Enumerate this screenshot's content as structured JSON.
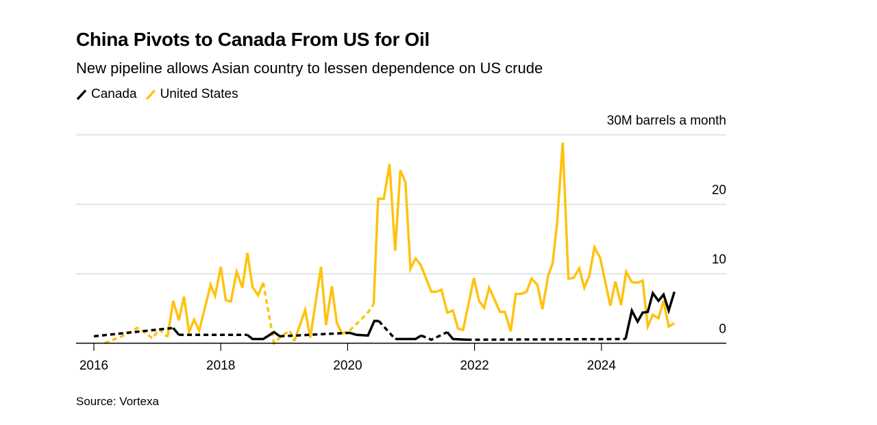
{
  "chart_data": {
    "type": "line",
    "title": "China Pivots to Canada From US for Oil",
    "subtitle": "New pipeline allows Asian country to lessen dependence on US crude",
    "ylabel": "30M barrels a month",
    "xlabel": "",
    "source": "Source: Vortexa",
    "xlim": [
      2015.7,
      2026.0
    ],
    "ylim": [
      0,
      30
    ],
    "yticks": [
      {
        "value": 30,
        "label": "30M barrels a month"
      },
      {
        "value": 20,
        "label": "20"
      },
      {
        "value": 10,
        "label": "10"
      },
      {
        "value": 0,
        "label": "0"
      }
    ],
    "xticks": [
      {
        "value": 2016,
        "label": "2016"
      },
      {
        "value": 2018,
        "label": "2018"
      },
      {
        "value": 2020,
        "label": "2020"
      },
      {
        "value": 2022,
        "label": "2022"
      },
      {
        "value": 2024,
        "label": "2024"
      }
    ],
    "grid": true,
    "legend_position": "top-left",
    "series": [
      {
        "name": "United States",
        "color": "#FFC20E",
        "segments": [
          {
            "style": "dashed",
            "points": [
              [
                2016.17,
                0
              ],
              [
                2016.5,
                1.2
              ],
              [
                2016.68,
                2.2
              ],
              [
                2016.82,
                1.5
              ],
              [
                2016.92,
                0.7
              ],
              [
                2017.03,
                2.0
              ],
              [
                2017.16,
                0.9
              ]
            ]
          },
          {
            "style": "solid",
            "points": [
              [
                2017.16,
                0.9
              ],
              [
                2017.25,
                6.1
              ],
              [
                2017.34,
                3.3
              ],
              [
                2017.42,
                6.7
              ],
              [
                2017.5,
                1.6
              ],
              [
                2017.58,
                3.4
              ],
              [
                2017.66,
                1.8
              ],
              [
                2017.84,
                8.4
              ],
              [
                2017.91,
                6.8
              ],
              [
                2018.0,
                11
              ],
              [
                2018.08,
                6.2
              ],
              [
                2018.16,
                6.0
              ],
              [
                2018.25,
                10.3
              ],
              [
                2018.34,
                8.0
              ],
              [
                2018.42,
                13
              ],
              [
                2018.5,
                8.1
              ],
              [
                2018.59,
                6.9
              ],
              [
                2018.67,
                8.7
              ]
            ]
          },
          {
            "style": "dashed",
            "points": [
              [
                2018.67,
                8.7
              ],
              [
                2018.84,
                0
              ],
              [
                2018.95,
                1.0
              ],
              [
                2019.09,
                1.8
              ],
              [
                2019.16,
                0.3
              ]
            ]
          },
          {
            "style": "solid",
            "points": [
              [
                2019.16,
                0.3
              ],
              [
                2019.33,
                4.8
              ],
              [
                2019.41,
                0.8
              ],
              [
                2019.58,
                11
              ],
              [
                2019.66,
                2.6
              ],
              [
                2019.75,
                8.2
              ],
              [
                2019.83,
                2.9
              ],
              [
                2019.91,
                1.4
              ]
            ]
          },
          {
            "style": "dashed",
            "points": [
              [
                2019.91,
                1.4
              ],
              [
                2020.03,
                1.8
              ],
              [
                2020.32,
                4.4
              ],
              [
                2020.41,
                5.6
              ]
            ]
          },
          {
            "style": "solid",
            "points": [
              [
                2020.41,
                5.6
              ],
              [
                2020.48,
                20.8
              ],
              [
                2020.57,
                20.8
              ],
              [
                2020.66,
                25.8
              ],
              [
                2020.75,
                13.3
              ],
              [
                2020.83,
                24.9
              ],
              [
                2020.91,
                23.2
              ],
              [
                2020.99,
                10.7
              ],
              [
                2021.07,
                12.2
              ],
              [
                2021.15,
                11.3
              ],
              [
                2021.32,
                7.4
              ],
              [
                2021.39,
                7.4
              ],
              [
                2021.48,
                7.7
              ],
              [
                2021.57,
                4.4
              ],
              [
                2021.66,
                4.7
              ],
              [
                2021.74,
                2.1
              ],
              [
                2021.82,
                1.9
              ],
              [
                2021.99,
                9.4
              ],
              [
                2022.07,
                6.1
              ],
              [
                2022.15,
                5.1
              ],
              [
                2022.23,
                8.0
              ],
              [
                2022.31,
                6.4
              ],
              [
                2022.4,
                4.5
              ],
              [
                2022.48,
                4.5
              ],
              [
                2022.57,
                1.7
              ],
              [
                2022.65,
                7.1
              ],
              [
                2022.74,
                7.1
              ],
              [
                2022.82,
                7.4
              ],
              [
                2022.9,
                9.3
              ],
              [
                2022.99,
                8.4
              ],
              [
                2023.07,
                4.9
              ],
              [
                2023.16,
                9.7
              ],
              [
                2023.23,
                11.5
              ],
              [
                2023.3,
                17.2
              ],
              [
                2023.39,
                28.9
              ],
              [
                2023.48,
                9.3
              ],
              [
                2023.56,
                9.4
              ],
              [
                2023.65,
                10.8
              ],
              [
                2023.73,
                8.0
              ],
              [
                2023.81,
                9.7
              ],
              [
                2023.89,
                13.8
              ],
              [
                2023.98,
                12.3
              ],
              [
                2024.14,
                5.4
              ],
              [
                2024.22,
                8.9
              ],
              [
                2024.31,
                5.5
              ],
              [
                2024.39,
                10.3
              ],
              [
                2024.48,
                8.8
              ],
              [
                2024.57,
                8.7
              ],
              [
                2024.65,
                9.0
              ],
              [
                2024.73,
                2.4
              ],
              [
                2024.81,
                4.1
              ],
              [
                2024.9,
                3.6
              ],
              [
                2024.98,
                6.1
              ],
              [
                2025.06,
                2.4
              ],
              [
                2025.15,
                2.9
              ]
            ]
          }
        ]
      },
      {
        "name": "Canada",
        "color": "#000000",
        "segments": [
          {
            "style": "dashed",
            "points": [
              [
                2016.0,
                1.0
              ],
              [
                2017.25,
                2.2
              ]
            ]
          },
          {
            "style": "solid",
            "points": [
              [
                2017.25,
                2.2
              ],
              [
                2017.34,
                1.2
              ]
            ]
          },
          {
            "style": "dashed",
            "points": [
              [
                2017.34,
                1.2
              ],
              [
                2018.42,
                1.2
              ]
            ]
          },
          {
            "style": "solid",
            "points": [
              [
                2018.42,
                1.2
              ],
              [
                2018.5,
                0.6
              ],
              [
                2018.67,
                0.6
              ],
              [
                2018.84,
                1.6
              ],
              [
                2018.93,
                1.0
              ]
            ]
          },
          {
            "style": "dashed",
            "points": [
              [
                2018.93,
                1.0
              ],
              [
                2020.03,
                1.5
              ]
            ]
          },
          {
            "style": "solid",
            "points": [
              [
                2020.03,
                1.5
              ],
              [
                2020.14,
                1.2
              ],
              [
                2020.32,
                1.1
              ],
              [
                2020.42,
                3.2
              ],
              [
                2020.49,
                3.2
              ]
            ]
          },
          {
            "style": "dashed",
            "points": [
              [
                2020.49,
                3.2
              ],
              [
                2020.75,
                0.6
              ]
            ]
          },
          {
            "style": "solid",
            "points": [
              [
                2020.75,
                0.6
              ],
              [
                2021.07,
                0.6
              ],
              [
                2021.16,
                1.1
              ]
            ]
          },
          {
            "style": "dashed",
            "points": [
              [
                2021.16,
                1.1
              ],
              [
                2021.32,
                0.5
              ],
              [
                2021.57,
                1.6
              ]
            ]
          },
          {
            "style": "solid",
            "points": [
              [
                2021.57,
                1.6
              ],
              [
                2021.66,
                0.6
              ],
              [
                2021.88,
                0.5
              ]
            ]
          },
          {
            "style": "dashed",
            "points": [
              [
                2021.88,
                0.5
              ],
              [
                2024.38,
                0.6
              ]
            ]
          },
          {
            "style": "solid",
            "points": [
              [
                2024.38,
                0.6
              ],
              [
                2024.48,
                4.7
              ],
              [
                2024.57,
                3.1
              ],
              [
                2024.65,
                4.4
              ],
              [
                2024.73,
                4.5
              ],
              [
                2024.81,
                7.2
              ],
              [
                2024.9,
                6.1
              ],
              [
                2024.98,
                7.0
              ],
              [
                2025.06,
                4.7
              ],
              [
                2025.15,
                7.4
              ]
            ]
          }
        ]
      }
    ]
  },
  "legend": [
    {
      "label": "Canada",
      "color": "#000000"
    },
    {
      "label": "United States",
      "color": "#FFC20E"
    }
  ]
}
